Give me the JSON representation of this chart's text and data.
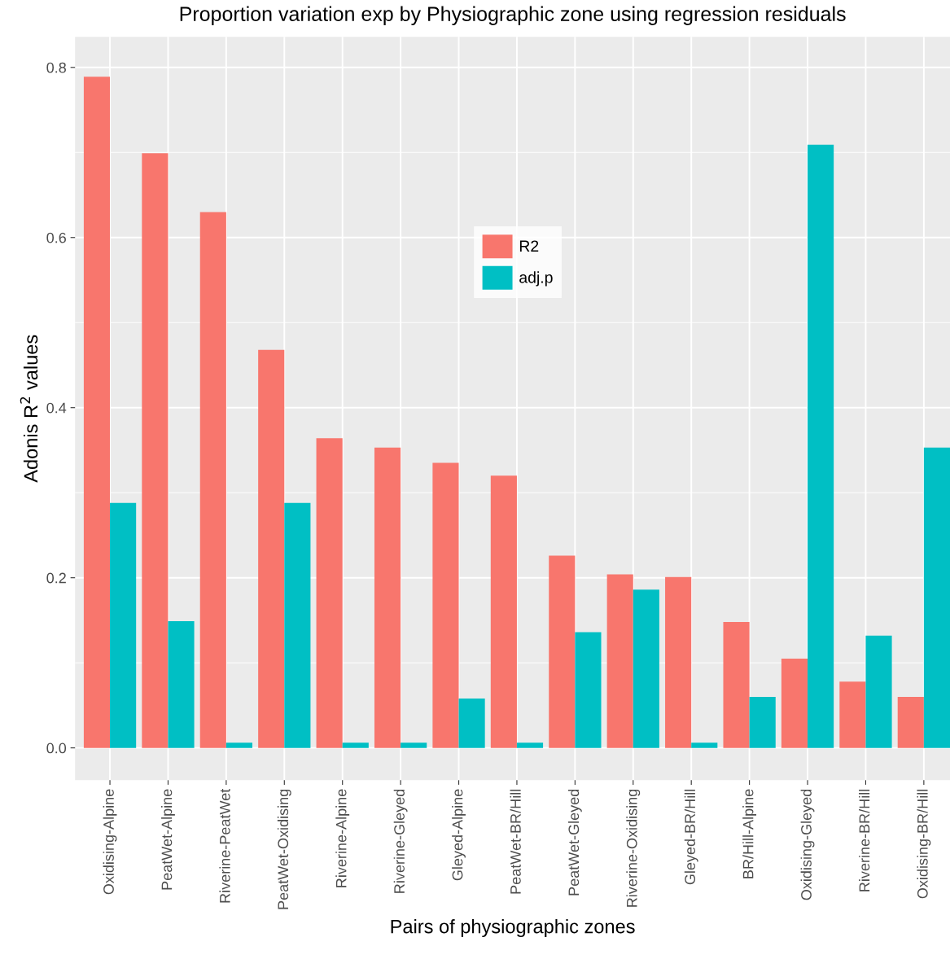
{
  "chart_data": {
    "type": "bar",
    "title": "Proportion variation exp by Physiographic zone using regression residuals",
    "xlabel": "Pairs of physiographic zones",
    "ylabel": "Adonis R$^{2}$ values",
    "categories": [
      "Oxidising-Alpine",
      "PeatWet-Alpine",
      "Riverine-PeatWet",
      "PeatWet-Oxidising",
      "Riverine-Alpine",
      "Riverine-Gleyed",
      "Gleyed-Alpine",
      "PeatWet-BR/Hill",
      "PeatWet-Gleyed",
      "Riverine-Oxidising",
      "Gleyed-BR/Hill",
      "BR/Hill-Alpine",
      "Oxidising-Gleyed",
      "Riverine-BR/Hill",
      "Oxidising-BR/Hill"
    ],
    "series": [
      {
        "name": "R2",
        "color": "#f8766d",
        "values": [
          0.789,
          0.699,
          0.63,
          0.468,
          0.364,
          0.353,
          0.335,
          0.32,
          0.226,
          0.204,
          0.201,
          0.148,
          0.105,
          0.078,
          0.06
        ]
      },
      {
        "name": "adj.p",
        "color": "#00bfc4",
        "values": [
          0.288,
          0.149,
          0.006,
          0.288,
          0.006,
          0.006,
          0.058,
          0.006,
          0.136,
          0.186,
          0.006,
          0.06,
          0.709,
          0.132,
          0.353
        ]
      }
    ],
    "ylim": [
      -0.038,
      0.836
    ],
    "yticks": [
      {
        "value": 0,
        "label": "0.0"
      },
      {
        "value": 0.2,
        "label": "0.2"
      },
      {
        "value": 0.4,
        "label": "0.4"
      },
      {
        "value": 0.6,
        "label": "0.6"
      },
      {
        "value": 0.8,
        "label": "0.8"
      }
    ],
    "grid": true,
    "legend": "top"
  }
}
